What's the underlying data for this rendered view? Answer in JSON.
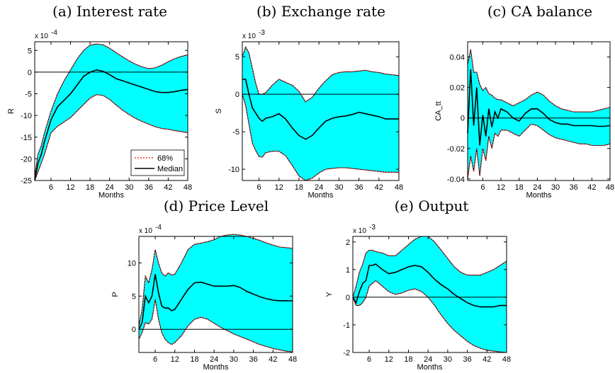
{
  "legend": {
    "band_label": "68%",
    "median_label": "Median"
  },
  "chart_data": [
    {
      "id": "a",
      "type": "line",
      "title": "(a)  Interest rate",
      "ylabel": "R",
      "xlabel": "Months",
      "scale": "x 10",
      "exponent": "-4",
      "xlim": [
        1,
        48
      ],
      "ylim": [
        -25,
        7
      ],
      "xticks": [
        6,
        12,
        18,
        24,
        30,
        36,
        42,
        48
      ],
      "yticks": [
        -25,
        -20,
        -15,
        -10,
        -5,
        0,
        5
      ],
      "zero_line": true,
      "legend": true,
      "x": [
        1,
        2,
        3,
        4,
        6,
        8,
        10,
        12,
        14,
        16,
        18,
        20,
        22,
        24,
        26,
        28,
        30,
        32,
        34,
        36,
        38,
        40,
        42,
        44,
        46,
        48
      ],
      "series": [
        {
          "name": "68%",
          "role": "upper",
          "values": [
            -24,
            -19,
            -17,
            -14,
            -9,
            -5,
            -2,
            0.5,
            3,
            5,
            6.2,
            6.5,
            6.3,
            5.5,
            4.5,
            3.5,
            2.6,
            1.8,
            1.2,
            0.8,
            1,
            1.6,
            2.4,
            3.1,
            3.6,
            4
          ]
        },
        {
          "name": "Median",
          "role": "median",
          "values": [
            -25,
            -21,
            -19,
            -16,
            -11,
            -8,
            -6.5,
            -5,
            -3,
            -1,
            0,
            0.5,
            0.2,
            -0.6,
            -1.5,
            -2,
            -2.5,
            -3,
            -3.5,
            -4,
            -4.5,
            -4.7,
            -4.7,
            -4.5,
            -4.2,
            -4
          ]
        },
        {
          "name": "68%",
          "role": "lower",
          "values": [
            -25,
            -23,
            -21,
            -19,
            -14,
            -12.5,
            -11.5,
            -10.5,
            -9,
            -7.5,
            -6,
            -5.2,
            -5.4,
            -6.3,
            -7.6,
            -8.8,
            -9.8,
            -10.7,
            -11.4,
            -12,
            -12.6,
            -13,
            -13.2,
            -13.5,
            -13.7,
            -14
          ]
        }
      ]
    },
    {
      "id": "b",
      "type": "line",
      "title": "(b)  Exchange rate",
      "ylabel": "S",
      "xlabel": "Months",
      "scale": "x 10",
      "exponent": "-3",
      "xlim": [
        1,
        48
      ],
      "ylim": [
        -11.5,
        7
      ],
      "xticks": [
        6,
        12,
        18,
        24,
        30,
        36,
        42,
        48
      ],
      "yticks": [
        -10,
        -5,
        0,
        5
      ],
      "zero_line": true,
      "legend": false,
      "x": [
        1,
        2,
        3,
        4,
        5,
        6,
        7,
        8,
        10,
        12,
        14,
        16,
        18,
        20,
        22,
        24,
        26,
        28,
        30,
        32,
        34,
        36,
        38,
        40,
        42,
        44,
        46,
        48
      ],
      "series": [
        {
          "name": "68%",
          "role": "upper",
          "values": [
            5,
            6.3,
            5.5,
            3.5,
            1.5,
            0,
            0,
            0.2,
            1.2,
            2,
            1.6,
            1.2,
            0.4,
            -1,
            -0.4,
            0.8,
            1.8,
            2.6,
            2.9,
            3,
            3,
            3.1,
            3.2,
            3,
            2.9,
            2.7,
            2.6,
            2.5
          ]
        },
        {
          "name": "Median",
          "role": "median",
          "values": [
            2,
            2,
            0,
            -1.8,
            -2.5,
            -3.2,
            -3.6,
            -3.2,
            -3,
            -2.6,
            -3.3,
            -4.5,
            -5.5,
            -6,
            -5.5,
            -4.5,
            -3.6,
            -3.2,
            -3,
            -2.9,
            -2.7,
            -2.4,
            -2.6,
            -2.8,
            -3,
            -3.3,
            -3.3,
            -3.3
          ]
        },
        {
          "name": "68%",
          "role": "lower",
          "values": [
            0,
            -1.5,
            -4,
            -6.5,
            -7.5,
            -8.3,
            -8.4,
            -7.8,
            -7.6,
            -7.6,
            -8.2,
            -9.5,
            -10.9,
            -11.5,
            -11.2,
            -10.5,
            -10,
            -9.9,
            -9.8,
            -9.8,
            -9.9,
            -10,
            -10.1,
            -10.2,
            -10.3,
            -10.4,
            -10.4,
            -10.4
          ]
        }
      ]
    },
    {
      "id": "c",
      "type": "line",
      "title": "(c)  CA balance",
      "ylabel": "CA_tt",
      "xlabel": "Months",
      "scale": "",
      "exponent": "",
      "xlim": [
        1,
        48
      ],
      "ylim": [
        -0.041,
        0.05
      ],
      "xticks": [
        6,
        12,
        18,
        24,
        30,
        36,
        42,
        48
      ],
      "yticks": [
        -0.04,
        -0.02,
        0,
        0.02,
        0.04
      ],
      "zero_line": true,
      "legend": false,
      "x": [
        1,
        2,
        3,
        4,
        5,
        6,
        7,
        8,
        9,
        10,
        11,
        12,
        14,
        16,
        18,
        20,
        22,
        24,
        26,
        28,
        30,
        32,
        34,
        36,
        38,
        40,
        42,
        44,
        46,
        48
      ],
      "series": [
        {
          "name": "68%",
          "role": "upper",
          "values": [
            0.035,
            0.045,
            0.03,
            0.03,
            0.022,
            0.018,
            0.02,
            0.016,
            0.015,
            0.013,
            0.012,
            0.012,
            0.01,
            0.008,
            0.01,
            0.012,
            0.015,
            0.017,
            0.015,
            0.011,
            0.008,
            0.006,
            0.005,
            0.004,
            0.004,
            0.004,
            0.004,
            0.005,
            0.006,
            0.007
          ]
        },
        {
          "name": "Median",
          "role": "median",
          "values": [
            -0.01,
            0.032,
            -0.005,
            0.02,
            -0.018,
            0.002,
            -0.012,
            0.006,
            -0.006,
            0.004,
            0,
            0.006,
            0.004,
            0,
            -0.002,
            0.003,
            0.006,
            0.006,
            0.003,
            -0.001,
            -0.003,
            -0.004,
            -0.004,
            -0.005,
            -0.005,
            -0.005,
            -0.005,
            -0.0055,
            -0.0055,
            -0.005
          ]
        },
        {
          "name": "68%",
          "role": "lower",
          "values": [
            -0.04,
            -0.025,
            -0.035,
            -0.02,
            -0.038,
            -0.02,
            -0.028,
            -0.012,
            -0.02,
            -0.01,
            -0.012,
            -0.008,
            -0.008,
            -0.01,
            -0.012,
            -0.008,
            -0.004,
            -0.005,
            -0.008,
            -0.011,
            -0.013,
            -0.014,
            -0.015,
            -0.016,
            -0.017,
            -0.017,
            -0.018,
            -0.018,
            -0.018,
            -0.017
          ]
        }
      ]
    },
    {
      "id": "d",
      "type": "line",
      "title": "(d)  Price Level",
      "ylabel": "P",
      "xlabel": "Months",
      "scale": "x 10",
      "exponent": "-4",
      "xlim": [
        1,
        48
      ],
      "ylim": [
        -3.5,
        14
      ],
      "xticks": [
        6,
        12,
        18,
        24,
        30,
        36,
        42,
        48
      ],
      "yticks": [
        0,
        5,
        10
      ],
      "zero_line": true,
      "legend": false,
      "x": [
        1,
        2,
        3,
        4,
        5,
        6,
        7,
        8,
        9,
        10,
        11,
        12,
        14,
        16,
        18,
        20,
        22,
        24,
        26,
        28,
        30,
        32,
        34,
        36,
        38,
        40,
        42,
        44,
        46,
        48
      ],
      "series": [
        {
          "name": "68%",
          "role": "upper",
          "values": [
            0.5,
            3,
            8,
            7,
            9,
            12,
            10,
            8.5,
            8,
            8.5,
            8.2,
            8.3,
            10,
            12,
            12.8,
            13,
            13.2,
            13.5,
            14,
            14.2,
            14.3,
            14.2,
            14,
            13.7,
            13.4,
            13,
            12.7,
            12.4,
            12.3,
            12.2
          ]
        },
        {
          "name": "Median",
          "role": "median",
          "values": [
            0,
            1,
            5,
            4,
            5,
            8.3,
            5.5,
            3.5,
            3.2,
            3.2,
            2.8,
            3,
            4.5,
            6,
            7,
            7.1,
            6.8,
            6.5,
            6.5,
            6.5,
            6.6,
            6.3,
            5.7,
            5.3,
            4.9,
            4.6,
            4.4,
            4.3,
            4.3,
            4.3
          ]
        },
        {
          "name": "68%",
          "role": "lower",
          "values": [
            -1.5,
            -0.5,
            1,
            0.8,
            1.5,
            4.5,
            1.5,
            -0.5,
            -1.5,
            -2,
            -2.3,
            -2,
            -1,
            0.5,
            1.5,
            1.8,
            1.5,
            0.9,
            0.3,
            -0.2,
            -0.7,
            -1.1,
            -1.5,
            -1.9,
            -2.3,
            -2.6,
            -2.9,
            -3.1,
            -3.3,
            -3.4
          ]
        }
      ]
    },
    {
      "id": "e",
      "type": "line",
      "title": "(e)  Output",
      "ylabel": "Y",
      "xlabel": "Months",
      "scale": "x 10",
      "exponent": "-3",
      "xlim": [
        1,
        48
      ],
      "ylim": [
        -2,
        2.2
      ],
      "xticks": [
        6,
        12,
        18,
        24,
        30,
        36,
        42,
        48
      ],
      "yticks": [
        -2,
        -1,
        0,
        1,
        2
      ],
      "zero_line": true,
      "legend": false,
      "x": [
        1,
        2,
        3,
        4,
        5,
        6,
        7,
        8,
        10,
        12,
        14,
        16,
        18,
        20,
        22,
        24,
        26,
        28,
        30,
        32,
        34,
        36,
        38,
        40,
        42,
        44,
        46,
        48
      ],
      "series": [
        {
          "name": "68%",
          "role": "upper",
          "values": [
            0,
            0.4,
            0.9,
            1.2,
            1.6,
            1.7,
            1.7,
            1.65,
            1.6,
            1.5,
            1.5,
            1.7,
            1.9,
            2.1,
            2.2,
            2.2,
            2.0,
            1.7,
            1.4,
            1.1,
            0.9,
            0.8,
            0.8,
            0.8,
            0.9,
            1.0,
            1.15,
            1.3
          ]
        },
        {
          "name": "Median",
          "role": "median",
          "values": [
            0,
            -0.2,
            0.2,
            0.5,
            0.6,
            1.15,
            1.15,
            1.2,
            1.0,
            0.85,
            0.9,
            1.0,
            1.1,
            1.15,
            1.1,
            0.9,
            0.65,
            0.45,
            0.3,
            0.1,
            -0.05,
            -0.2,
            -0.3,
            -0.35,
            -0.35,
            -0.35,
            -0.3,
            -0.3
          ]
        },
        {
          "name": "68%",
          "role": "lower",
          "values": [
            0,
            -0.3,
            -0.3,
            -0.2,
            0,
            0.4,
            0.5,
            0.6,
            0.4,
            0.2,
            0.1,
            0.15,
            0.25,
            0.3,
            0.2,
            0,
            -0.3,
            -0.65,
            -0.95,
            -1.2,
            -1.4,
            -1.6,
            -1.75,
            -1.85,
            -1.92,
            -1.95,
            -1.98,
            -2
          ]
        }
      ]
    }
  ]
}
